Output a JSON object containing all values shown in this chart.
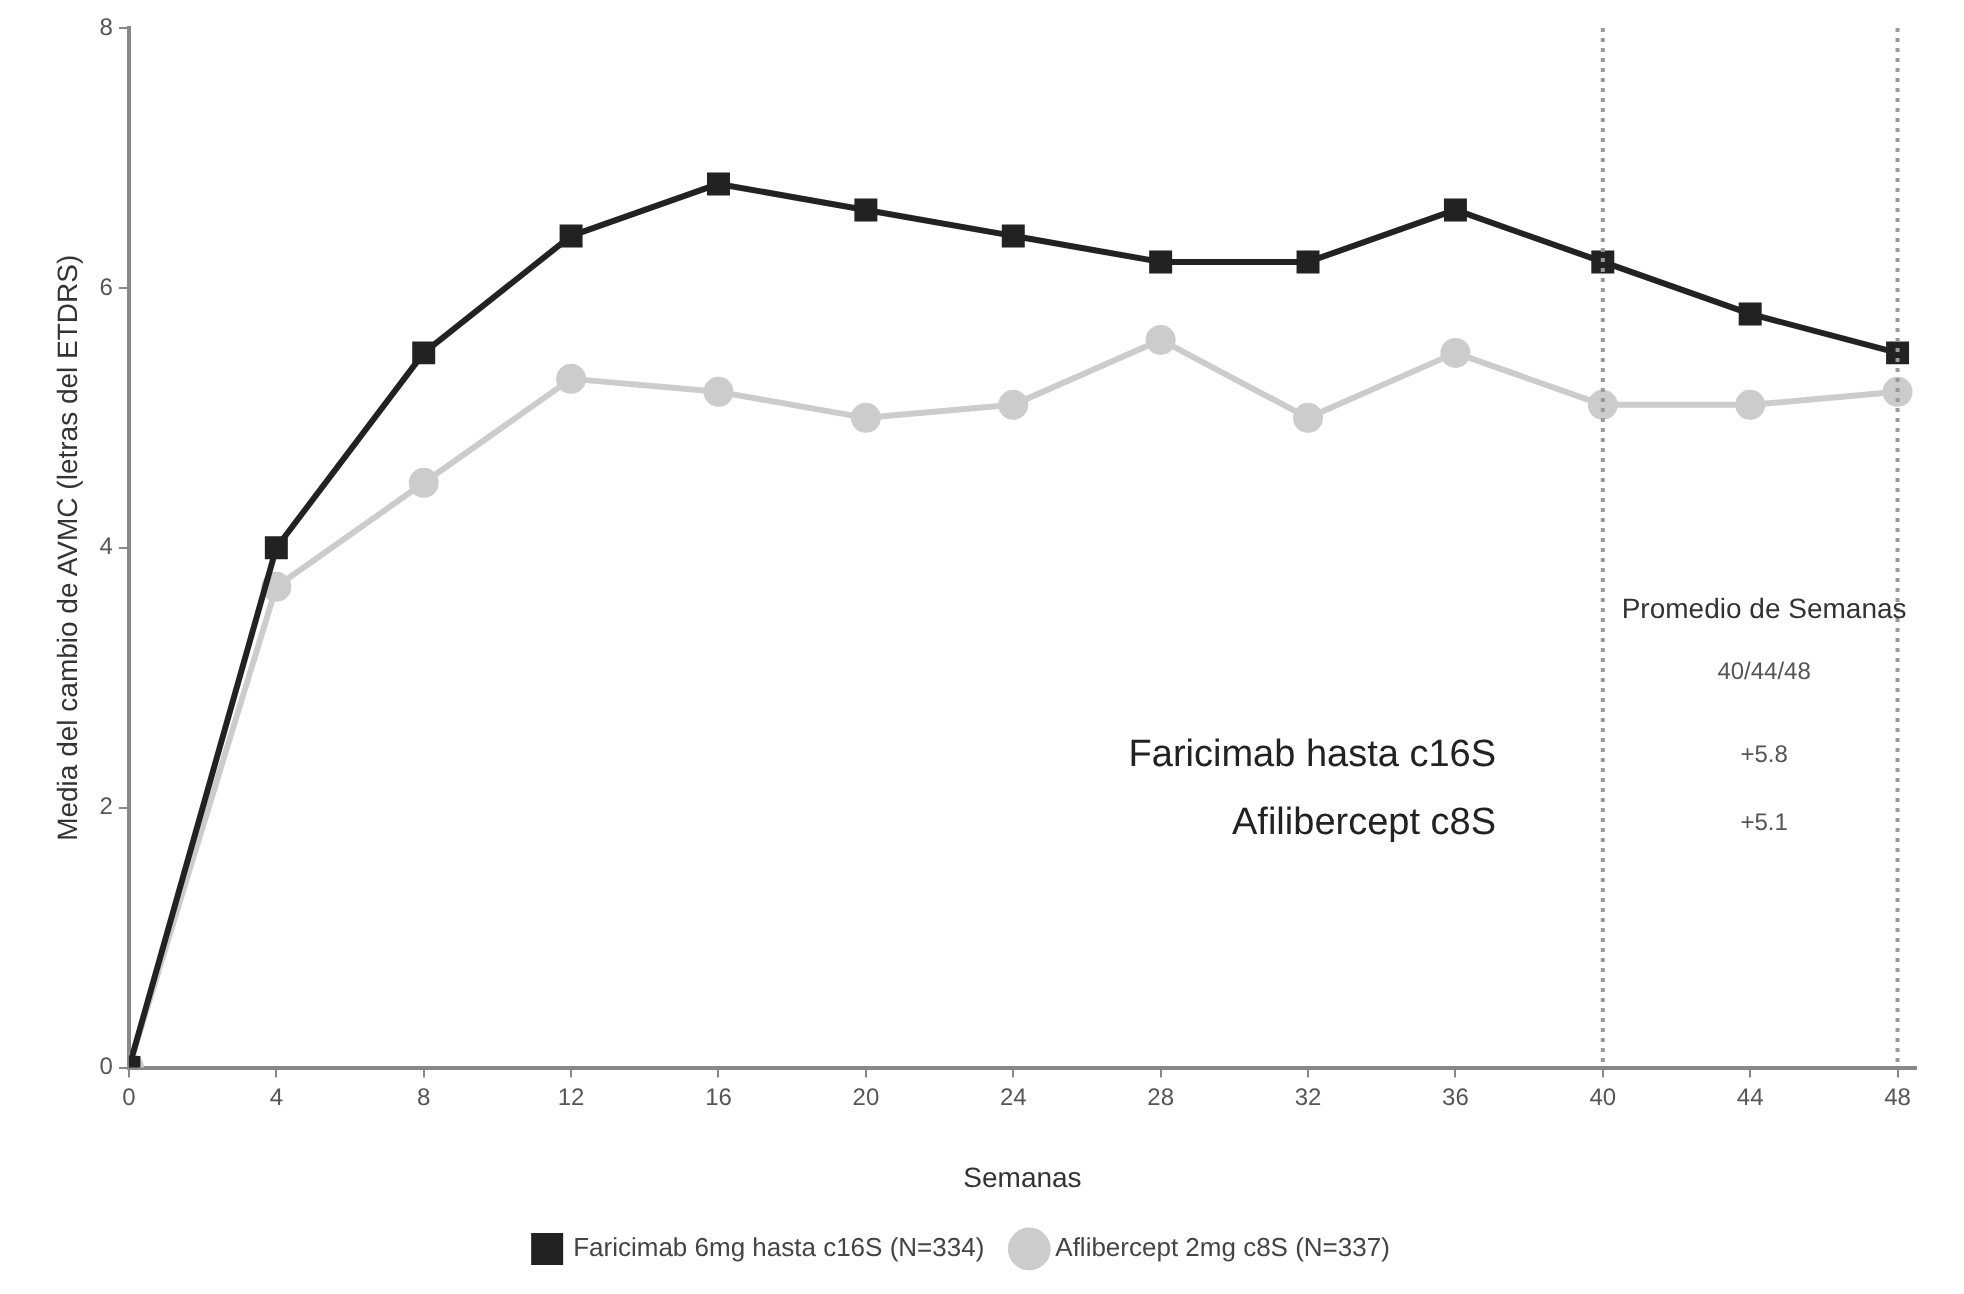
{
  "chart_data": {
    "type": "line",
    "xlabel": "Semanas",
    "ylabel": "Media del cambio de AVMC (letras del ETDRS)",
    "x": [
      0,
      4,
      8,
      12,
      16,
      20,
      24,
      28,
      32,
      36,
      40,
      44,
      48
    ],
    "xlim": [
      0,
      48.5
    ],
    "xticks": [
      0,
      4,
      8,
      12,
      16,
      20,
      24,
      28,
      32,
      36,
      40,
      44,
      48
    ],
    "ylim": [
      0,
      8
    ],
    "yticks": [
      0,
      2,
      4,
      6,
      8
    ],
    "grid": false,
    "legend": "bottom",
    "line_style": "solid",
    "series": [
      {
        "name": "Faricimab 6mg hasta c16S (N=334)",
        "color": "#222222",
        "marker": "square",
        "values": [
          0,
          4.0,
          5.5,
          6.4,
          6.8,
          6.6,
          6.4,
          6.2,
          6.2,
          6.6,
          6.2,
          5.8,
          5.5
        ]
      },
      {
        "name": "Aflibercept 2mg c8S (N=337)",
        "color": "#cccccc",
        "marker": "circle",
        "values": [
          0,
          3.7,
          4.5,
          5.3,
          5.2,
          5.0,
          5.1,
          5.6,
          5.0,
          5.5,
          5.1,
          5.1,
          5.2
        ]
      }
    ],
    "ref_lines": [
      {
        "axis": "x",
        "value": 40,
        "color": "#999999",
        "line_style": "dotted"
      },
      {
        "axis": "x",
        "value": 48,
        "color": "#999999",
        "line_style": "dotted"
      }
    ],
    "annotations": [
      "Promedio de Semanas",
      "40/44/48",
      "Faricimab hasta c16S",
      "+5.8",
      "Afilibercept c8S",
      "+5.1"
    ]
  }
}
